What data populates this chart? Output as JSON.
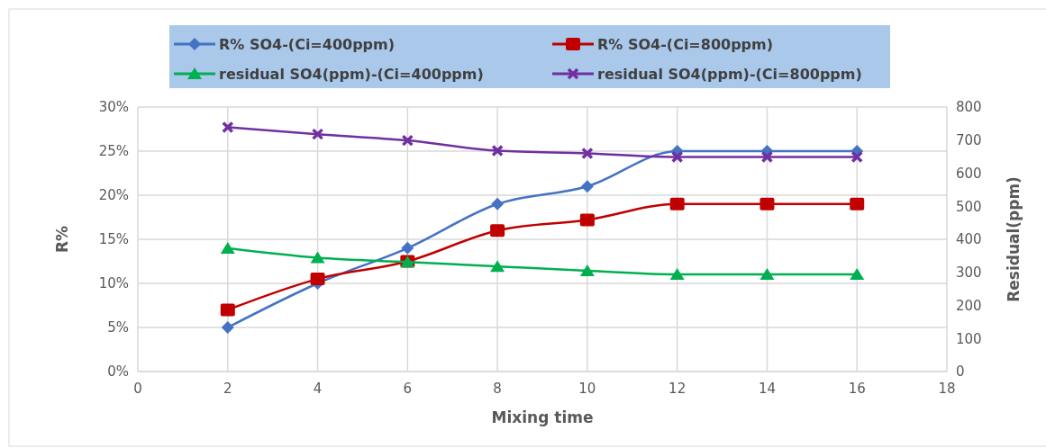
{
  "chart_data": {
    "type": "line",
    "xlabel": "Mixing time",
    "ylabel": "R%",
    "y2label": "Residual(ppm)",
    "x": [
      2,
      4,
      6,
      8,
      10,
      12,
      14,
      16
    ],
    "xlim": [
      0,
      18
    ],
    "xticks": [
      0,
      2,
      4,
      6,
      8,
      10,
      12,
      14,
      16,
      18
    ],
    "ylim": [
      0,
      30
    ],
    "yticks": [
      {
        "value": 0,
        "label": "0%"
      },
      {
        "value": 5,
        "label": "5%"
      },
      {
        "value": 10,
        "label": "10%"
      },
      {
        "value": 15,
        "label": "15%"
      },
      {
        "value": 20,
        "label": "20%"
      },
      {
        "value": 25,
        "label": "25%"
      },
      {
        "value": 30,
        "label": "30%"
      }
    ],
    "y2lim": [
      0,
      800
    ],
    "y2ticks": [
      0,
      100,
      200,
      300,
      400,
      500,
      600,
      700,
      800
    ],
    "grid": true,
    "legend": "top",
    "line_style": "solid",
    "series": [
      {
        "name": "R% SO4-(Ci=400ppm)",
        "color": "#4472c4",
        "marker": "diamond",
        "values": [
          5,
          10,
          14,
          19,
          21,
          25,
          25,
          25
        ]
      },
      {
        "name": "R% SO4-(Ci=800ppm)",
        "color": "#c00000",
        "marker": "square",
        "values": [
          7,
          10.5,
          12.5,
          16,
          17.2,
          19,
          19,
          19
        ]
      },
      {
        "name": "residual SO4(ppm)-(Ci=400ppm)",
        "color": "#00b050",
        "marker": "triangle",
        "axis": "y2",
        "values": [
          373,
          344,
          331,
          318,
          305,
          294,
          294,
          294
        ]
      },
      {
        "name": "residual SO4(ppm)-(Ci=800ppm)",
        "color": "#7030a0",
        "marker": "cross",
        "axis": "y2",
        "values": [
          739,
          718,
          699,
          668,
          660,
          649,
          649,
          649
        ]
      }
    ]
  }
}
